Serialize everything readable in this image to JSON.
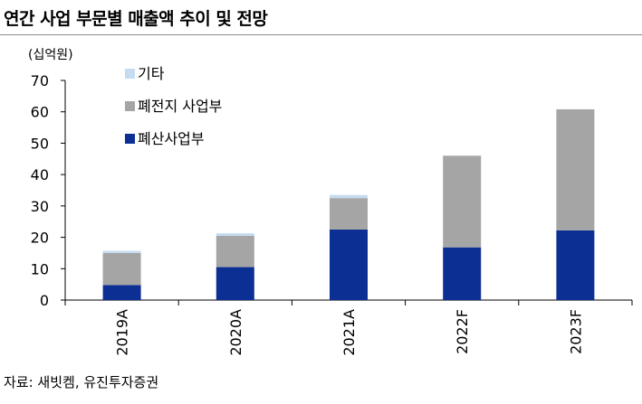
{
  "title": "연간 사업 부문별 매출액 추이 및 전망",
  "source": "자료: 새빗켐, 유진투자증권",
  "colors": {
    "기타": "#c5dcf0",
    "폐전지 사업부": "#a5a5a5",
    "폐산사업부": "#0c2f94"
  },
  "chart_data": {
    "type": "bar",
    "stacked": true,
    "unit_label": "(십억원)",
    "categories": [
      "2019A",
      "2020A",
      "2021A",
      "2022F",
      "2023F"
    ],
    "series": [
      {
        "name": "폐산사업부",
        "values": [
          4.8,
          10.5,
          22.5,
          16.8,
          22.2
        ]
      },
      {
        "name": "폐전지 사업부",
        "values": [
          10.2,
          10.0,
          10.0,
          29.2,
          38.6
        ]
      },
      {
        "name": "기타",
        "values": [
          0.7,
          0.8,
          1.0,
          0.0,
          0.0
        ]
      }
    ],
    "legend_order": [
      "기타",
      "폐전지 사업부",
      "폐산사업부"
    ],
    "ylim": [
      0,
      70
    ],
    "yticks": [
      0,
      10,
      20,
      30,
      40,
      50,
      60,
      70
    ],
    "grid": false,
    "legend_position": "top-left"
  }
}
